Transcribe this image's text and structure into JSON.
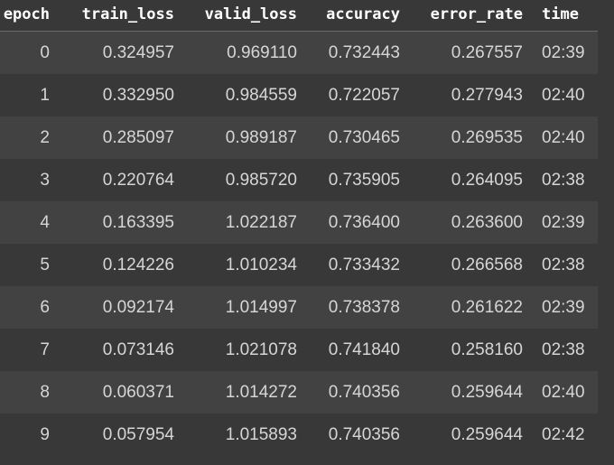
{
  "table": {
    "headers": [
      "epoch",
      "train_loss",
      "valid_loss",
      "accuracy",
      "error_rate",
      "time"
    ],
    "rows": [
      [
        "0",
        "0.324957",
        "0.969110",
        "0.732443",
        "0.267557",
        "02:39"
      ],
      [
        "1",
        "0.332950",
        "0.984559",
        "0.722057",
        "0.277943",
        "02:40"
      ],
      [
        "2",
        "0.285097",
        "0.989187",
        "0.730465",
        "0.269535",
        "02:40"
      ],
      [
        "3",
        "0.220764",
        "0.985720",
        "0.735905",
        "0.264095",
        "02:38"
      ],
      [
        "4",
        "0.163395",
        "1.022187",
        "0.736400",
        "0.263600",
        "02:39"
      ],
      [
        "5",
        "0.124226",
        "1.010234",
        "0.733432",
        "0.266568",
        "02:38"
      ],
      [
        "6",
        "0.092174",
        "1.014997",
        "0.738378",
        "0.261622",
        "02:39"
      ],
      [
        "7",
        "0.073146",
        "1.021078",
        "0.741840",
        "0.258160",
        "02:38"
      ],
      [
        "8",
        "0.060371",
        "1.014272",
        "0.740356",
        "0.259644",
        "02:40"
      ],
      [
        "9",
        "0.057954",
        "1.015893",
        "0.740356",
        "0.259644",
        "02:42"
      ]
    ]
  },
  "colors": {
    "background": "#383838",
    "row_stripe": "#424242",
    "header_text": "#ffffff",
    "cell_text": "#d6d6d6"
  }
}
